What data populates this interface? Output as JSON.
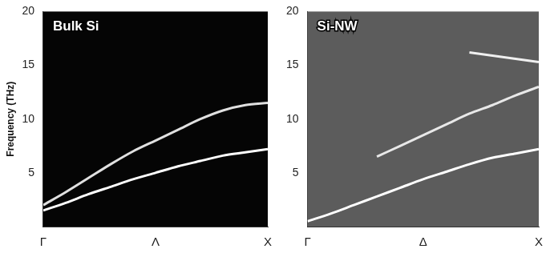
{
  "chart_data": [
    {
      "type": "line",
      "title": "Bulk Si",
      "y_label": "Frequency (THz)",
      "x": [
        0,
        0.1,
        0.2,
        0.3,
        0.4,
        0.5,
        0.6,
        0.7,
        0.8,
        0.9,
        1.0
      ],
      "series": [
        {
          "color": "#ffffff",
          "values": [
            1.5,
            2.2,
            3.0,
            3.7,
            4.4,
            5.0,
            5.6,
            6.1,
            6.6,
            6.9,
            7.2
          ]
        },
        {
          "color": "#e0e0e0",
          "values": [
            2.0,
            3.2,
            4.5,
            5.8,
            7.0,
            8.0,
            9.0,
            10.0,
            10.8,
            11.3,
            11.5
          ]
        }
      ],
      "xlim": [
        0,
        1
      ],
      "xticks": [
        {
          "value": 0,
          "label": "Γ"
        },
        {
          "value": 0.5,
          "label": "Λ"
        },
        {
          "value": 1,
          "label": "X"
        }
      ],
      "ylim": [
        0,
        20
      ],
      "yticks": [
        5,
        10,
        15,
        20
      ],
      "grid": false
    },
    {
      "type": "line",
      "title": "Si-NW",
      "x": [
        0,
        0.1,
        0.2,
        0.3,
        0.4,
        0.5,
        0.6,
        0.7,
        0.8,
        0.9,
        1.0
      ],
      "series": [
        {
          "color": "#ffffff",
          "values": [
            0.5,
            1.2,
            2.0,
            2.8,
            3.6,
            4.4,
            5.1,
            5.8,
            6.4,
            6.8,
            7.2
          ]
        },
        {
          "color": "#e8e8e8",
          "values": [
            null,
            null,
            null,
            6.5,
            7.5,
            8.5,
            9.5,
            10.5,
            11.3,
            12.2,
            13.0
          ]
        },
        {
          "color": "#f0f0f0",
          "values": [
            null,
            null,
            null,
            null,
            null,
            null,
            null,
            16.2,
            15.9,
            15.6,
            15.3
          ]
        }
      ],
      "xlim": [
        0,
        1
      ],
      "xticks": [
        {
          "value": 0,
          "label": "Γ"
        },
        {
          "value": 0.5,
          "label": "Δ"
        },
        {
          "value": 1,
          "label": "X"
        }
      ],
      "ylim": [
        0,
        20
      ],
      "yticks": [
        5,
        10,
        15,
        20
      ],
      "grid": false
    }
  ]
}
